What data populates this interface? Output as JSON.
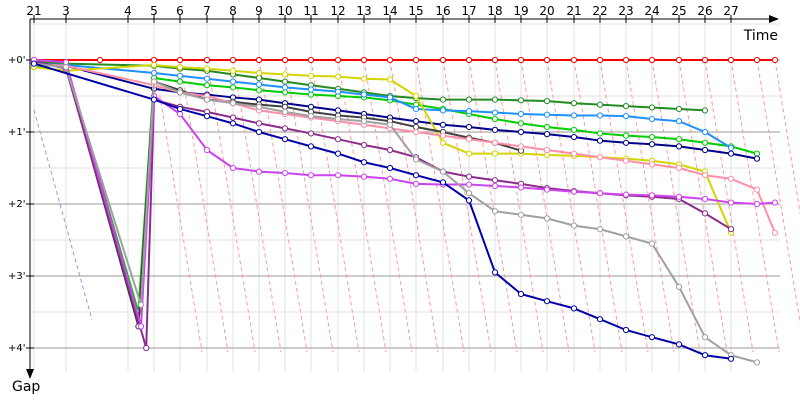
{
  "chart_data": {
    "type": "line",
    "xlabel": "Time",
    "ylabel": "Gap",
    "lap_tick_labels": [
      "21",
      "3",
      "4",
      "5",
      "6",
      "7",
      "8",
      "9",
      "10",
      "11",
      "12",
      "13",
      "14",
      "15",
      "16",
      "17",
      "18",
      "19",
      "20",
      "21",
      "22",
      "23",
      "24",
      "25",
      "26",
      "27"
    ],
    "y_tick_labels": [
      "+0'",
      "+1'",
      "+2'",
      "+3'",
      "+4'"
    ],
    "ylim_minutes": [
      -0.35,
      4.35
    ],
    "grid": true,
    "series": [
      {
        "color": "#ff0000",
        "points": [
          [
            0,
            0
          ],
          [
            2,
            0
          ],
          [
            4,
            0
          ],
          [
            5,
            0
          ],
          [
            6,
            0
          ],
          [
            7,
            0
          ],
          [
            8,
            0
          ],
          [
            9,
            0
          ],
          [
            10,
            0
          ],
          [
            11,
            0
          ],
          [
            12,
            0
          ],
          [
            13,
            0
          ],
          [
            14,
            0
          ],
          [
            15,
            0
          ],
          [
            16,
            0
          ],
          [
            17,
            0
          ],
          [
            18,
            0
          ],
          [
            19,
            0
          ],
          [
            20,
            0
          ],
          [
            21,
            0
          ],
          [
            22,
            0
          ],
          [
            23,
            0
          ],
          [
            24,
            0
          ],
          [
            25,
            0
          ],
          [
            26,
            0
          ],
          [
            27,
            0
          ],
          [
            28,
            0
          ]
        ]
      },
      {
        "color": "#228b22",
        "points": [
          [
            0,
            0.02
          ],
          [
            1,
            0.05
          ],
          [
            4,
            0.08
          ],
          [
            5,
            0.12
          ],
          [
            6,
            0.15
          ],
          [
            7,
            0.2
          ],
          [
            8,
            0.25
          ],
          [
            9,
            0.3
          ],
          [
            10,
            0.35
          ],
          [
            11,
            0.4
          ],
          [
            12,
            0.45
          ],
          [
            13,
            0.5
          ],
          [
            14,
            0.53
          ],
          [
            15,
            0.55
          ],
          [
            16,
            0.55
          ],
          [
            17,
            0.55
          ],
          [
            18,
            0.56
          ],
          [
            19,
            0.57
          ],
          [
            20,
            0.6
          ],
          [
            21,
            0.62
          ],
          [
            22,
            0.64
          ],
          [
            23,
            0.66
          ],
          [
            24,
            0.68
          ],
          [
            25,
            0.7
          ]
        ]
      },
      {
        "color": "#00cc00",
        "points": [
          [
            0,
            0.1
          ],
          [
            1,
            0.05
          ],
          [
            3.4,
            3.5
          ],
          [
            4,
            0.25
          ],
          [
            5,
            0.3
          ],
          [
            6,
            0.35
          ],
          [
            7,
            0.38
          ],
          [
            8,
            0.42
          ],
          [
            9,
            0.45
          ],
          [
            10,
            0.48
          ],
          [
            11,
            0.5
          ],
          [
            12,
            0.52
          ],
          [
            13,
            0.56
          ],
          [
            14,
            0.62
          ],
          [
            15,
            0.68
          ],
          [
            16,
            0.75
          ],
          [
            17,
            0.82
          ],
          [
            18,
            0.88
          ],
          [
            19,
            0.93
          ],
          [
            20,
            0.97
          ],
          [
            21,
            1.02
          ],
          [
            22,
            1.05
          ],
          [
            23,
            1.07
          ],
          [
            24,
            1.1
          ],
          [
            25,
            1.15
          ],
          [
            26,
            1.2
          ],
          [
            27,
            1.3
          ]
        ]
      },
      {
        "color": "#1e90ff",
        "points": [
          [
            0,
            0.05
          ],
          [
            1,
            0.07
          ],
          [
            4,
            0.18
          ],
          [
            5,
            0.22
          ],
          [
            6,
            0.26
          ],
          [
            7,
            0.3
          ],
          [
            8,
            0.34
          ],
          [
            9,
            0.38
          ],
          [
            10,
            0.41
          ],
          [
            11,
            0.44
          ],
          [
            12,
            0.48
          ],
          [
            13,
            0.52
          ],
          [
            14,
            0.68
          ],
          [
            15,
            0.7
          ],
          [
            16,
            0.71
          ],
          [
            17,
            0.73
          ],
          [
            18,
            0.75
          ],
          [
            19,
            0.76
          ],
          [
            20,
            0.77
          ],
          [
            21,
            0.77
          ],
          [
            22,
            0.78
          ],
          [
            23,
            0.82
          ],
          [
            24,
            0.85
          ],
          [
            25,
            1.0
          ],
          [
            26,
            1.22
          ]
        ]
      },
      {
        "color": "#00008b",
        "points": [
          [
            0,
            0.05
          ],
          [
            1,
            0.08
          ],
          [
            4,
            0.4
          ],
          [
            5,
            0.45
          ],
          [
            6,
            0.48
          ],
          [
            7,
            0.52
          ],
          [
            8,
            0.55
          ],
          [
            9,
            0.6
          ],
          [
            10,
            0.65
          ],
          [
            11,
            0.7
          ],
          [
            12,
            0.75
          ],
          [
            13,
            0.8
          ],
          [
            14,
            0.85
          ],
          [
            15,
            0.9
          ],
          [
            16,
            0.93
          ],
          [
            17,
            0.97
          ],
          [
            18,
            1.0
          ],
          [
            19,
            1.03
          ],
          [
            20,
            1.07
          ],
          [
            21,
            1.12
          ],
          [
            22,
            1.15
          ],
          [
            23,
            1.17
          ],
          [
            24,
            1.2
          ],
          [
            25,
            1.25
          ],
          [
            26,
            1.3
          ],
          [
            27,
            1.37
          ]
        ]
      },
      {
        "color": "#d4d400",
        "points": [
          [
            0,
            0.1
          ],
          [
            1,
            0.15
          ],
          [
            4,
            0.07
          ],
          [
            5,
            0.1
          ],
          [
            6,
            0.12
          ],
          [
            7,
            0.15
          ],
          [
            8,
            0.18
          ],
          [
            9,
            0.2
          ],
          [
            10,
            0.22
          ],
          [
            11,
            0.23
          ],
          [
            12,
            0.26
          ],
          [
            13,
            0.27
          ],
          [
            14,
            0.5
          ],
          [
            15,
            1.15
          ],
          [
            16,
            1.3
          ],
          [
            17,
            1.3
          ],
          [
            18,
            1.3
          ],
          [
            19,
            1.32
          ],
          [
            20,
            1.33
          ],
          [
            21,
            1.35
          ],
          [
            22,
            1.37
          ],
          [
            23,
            1.4
          ],
          [
            24,
            1.45
          ],
          [
            25,
            1.55
          ],
          [
            26,
            2.4
          ]
        ]
      },
      {
        "color": "#404040",
        "points": [
          [
            0,
            0.03
          ],
          [
            1,
            0.1
          ],
          [
            3.4,
            3.7
          ],
          [
            4,
            0.3
          ],
          [
            5,
            0.42
          ],
          [
            6,
            0.55
          ],
          [
            7,
            0.58
          ],
          [
            8,
            0.62
          ],
          [
            9,
            0.65
          ],
          [
            10,
            0.72
          ],
          [
            11,
            0.77
          ],
          [
            12,
            0.8
          ],
          [
            13,
            0.85
          ],
          [
            14,
            0.93
          ],
          [
            15,
            1.0
          ],
          [
            16,
            1.08
          ],
          [
            17,
            1.15
          ],
          [
            18,
            1.26
          ]
        ]
      },
      {
        "color": "#ff8fa8",
        "points": [
          [
            0,
            0.05
          ],
          [
            1,
            0.08
          ],
          [
            4,
            0.35
          ],
          [
            5,
            0.45
          ],
          [
            6,
            0.5
          ],
          [
            7,
            0.6
          ],
          [
            8,
            0.7
          ],
          [
            9,
            0.75
          ],
          [
            10,
            0.8
          ],
          [
            11,
            0.85
          ],
          [
            12,
            0.9
          ],
          [
            13,
            0.95
          ],
          [
            14,
            1.0
          ],
          [
            15,
            1.05
          ],
          [
            16,
            1.1
          ],
          [
            17,
            1.15
          ],
          [
            18,
            1.2
          ],
          [
            19,
            1.25
          ],
          [
            20,
            1.3
          ],
          [
            21,
            1.35
          ],
          [
            22,
            1.4
          ],
          [
            23,
            1.45
          ],
          [
            24,
            1.5
          ],
          [
            25,
            1.6
          ],
          [
            26,
            1.65
          ],
          [
            27,
            1.8
          ],
          [
            28,
            2.4
          ]
        ]
      },
      {
        "color": "#8b2d8b",
        "points": [
          [
            0,
            0.02
          ],
          [
            1,
            0.12
          ],
          [
            3.7,
            4.0
          ],
          [
            4,
            0.55
          ],
          [
            5,
            0.65
          ],
          [
            6,
            0.72
          ],
          [
            7,
            0.8
          ],
          [
            8,
            0.88
          ],
          [
            9,
            0.95
          ],
          [
            10,
            1.02
          ],
          [
            11,
            1.1
          ],
          [
            12,
            1.18
          ],
          [
            13,
            1.25
          ],
          [
            14,
            1.35
          ],
          [
            15,
            1.55
          ],
          [
            16,
            1.62
          ],
          [
            17,
            1.67
          ],
          [
            18,
            1.72
          ],
          [
            19,
            1.78
          ],
          [
            20,
            1.82
          ],
          [
            21,
            1.85
          ],
          [
            22,
            1.88
          ],
          [
            23,
            1.9
          ],
          [
            24,
            1.93
          ],
          [
            25,
            2.13
          ],
          [
            26,
            2.35
          ]
        ]
      },
      {
        "color": "#cc44ee",
        "points": [
          [
            0,
            0.0
          ],
          [
            1,
            0.03
          ],
          [
            3.5,
            3.7
          ],
          [
            4,
            0.5
          ],
          [
            5,
            0.75
          ],
          [
            6,
            1.25
          ],
          [
            7,
            1.5
          ],
          [
            8,
            1.55
          ],
          [
            9,
            1.57
          ],
          [
            10,
            1.6
          ],
          [
            11,
            1.6
          ],
          [
            12,
            1.62
          ],
          [
            13,
            1.65
          ],
          [
            14,
            1.72
          ],
          [
            15,
            1.73
          ],
          [
            16,
            1.73
          ],
          [
            17,
            1.75
          ],
          [
            18,
            1.77
          ],
          [
            19,
            1.8
          ],
          [
            20,
            1.83
          ],
          [
            21,
            1.85
          ],
          [
            22,
            1.87
          ],
          [
            23,
            1.88
          ],
          [
            24,
            1.9
          ],
          [
            25,
            1.93
          ],
          [
            26,
            1.98
          ],
          [
            27,
            2.0
          ],
          [
            28,
            1.98
          ]
        ]
      },
      {
        "color": "#a0a0a0",
        "points": [
          [
            0,
            0.05
          ],
          [
            1,
            0.1
          ],
          [
            3.5,
            3.4
          ],
          [
            4,
            0.3
          ],
          [
            5,
            0.45
          ],
          [
            6,
            0.55
          ],
          [
            7,
            0.6
          ],
          [
            8,
            0.65
          ],
          [
            9,
            0.72
          ],
          [
            10,
            0.78
          ],
          [
            11,
            0.82
          ],
          [
            12,
            0.85
          ],
          [
            13,
            0.9
          ],
          [
            14,
            1.38
          ],
          [
            15,
            1.55
          ],
          [
            16,
            1.85
          ],
          [
            17,
            2.1
          ],
          [
            18,
            2.15
          ],
          [
            19,
            2.2
          ],
          [
            20,
            2.3
          ],
          [
            21,
            2.35
          ],
          [
            22,
            2.45
          ],
          [
            23,
            2.55
          ],
          [
            24,
            3.15
          ],
          [
            25,
            3.85
          ],
          [
            26,
            4.1
          ],
          [
            27,
            4.2
          ]
        ]
      },
      {
        "color": "#0000aa",
        "points": [
          [
            0,
            0.05
          ],
          [
            4,
            0.55
          ],
          [
            5,
            0.68
          ],
          [
            6,
            0.78
          ],
          [
            7,
            0.88
          ],
          [
            8,
            1.0
          ],
          [
            9,
            1.1
          ],
          [
            10,
            1.2
          ],
          [
            11,
            1.3
          ],
          [
            12,
            1.42
          ],
          [
            13,
            1.5
          ],
          [
            14,
            1.6
          ],
          [
            15,
            1.7
          ],
          [
            16,
            1.95
          ],
          [
            17,
            2.95
          ],
          [
            18,
            3.25
          ],
          [
            19,
            3.35
          ],
          [
            20,
            3.45
          ],
          [
            21,
            3.6
          ],
          [
            22,
            3.75
          ],
          [
            23,
            3.85
          ],
          [
            24,
            3.95
          ],
          [
            25,
            4.1
          ],
          [
            26,
            4.15
          ]
        ]
      }
    ],
    "lapped_lines_color": "#ff9a9a",
    "dashed_line_color": "#9a9ae0"
  }
}
